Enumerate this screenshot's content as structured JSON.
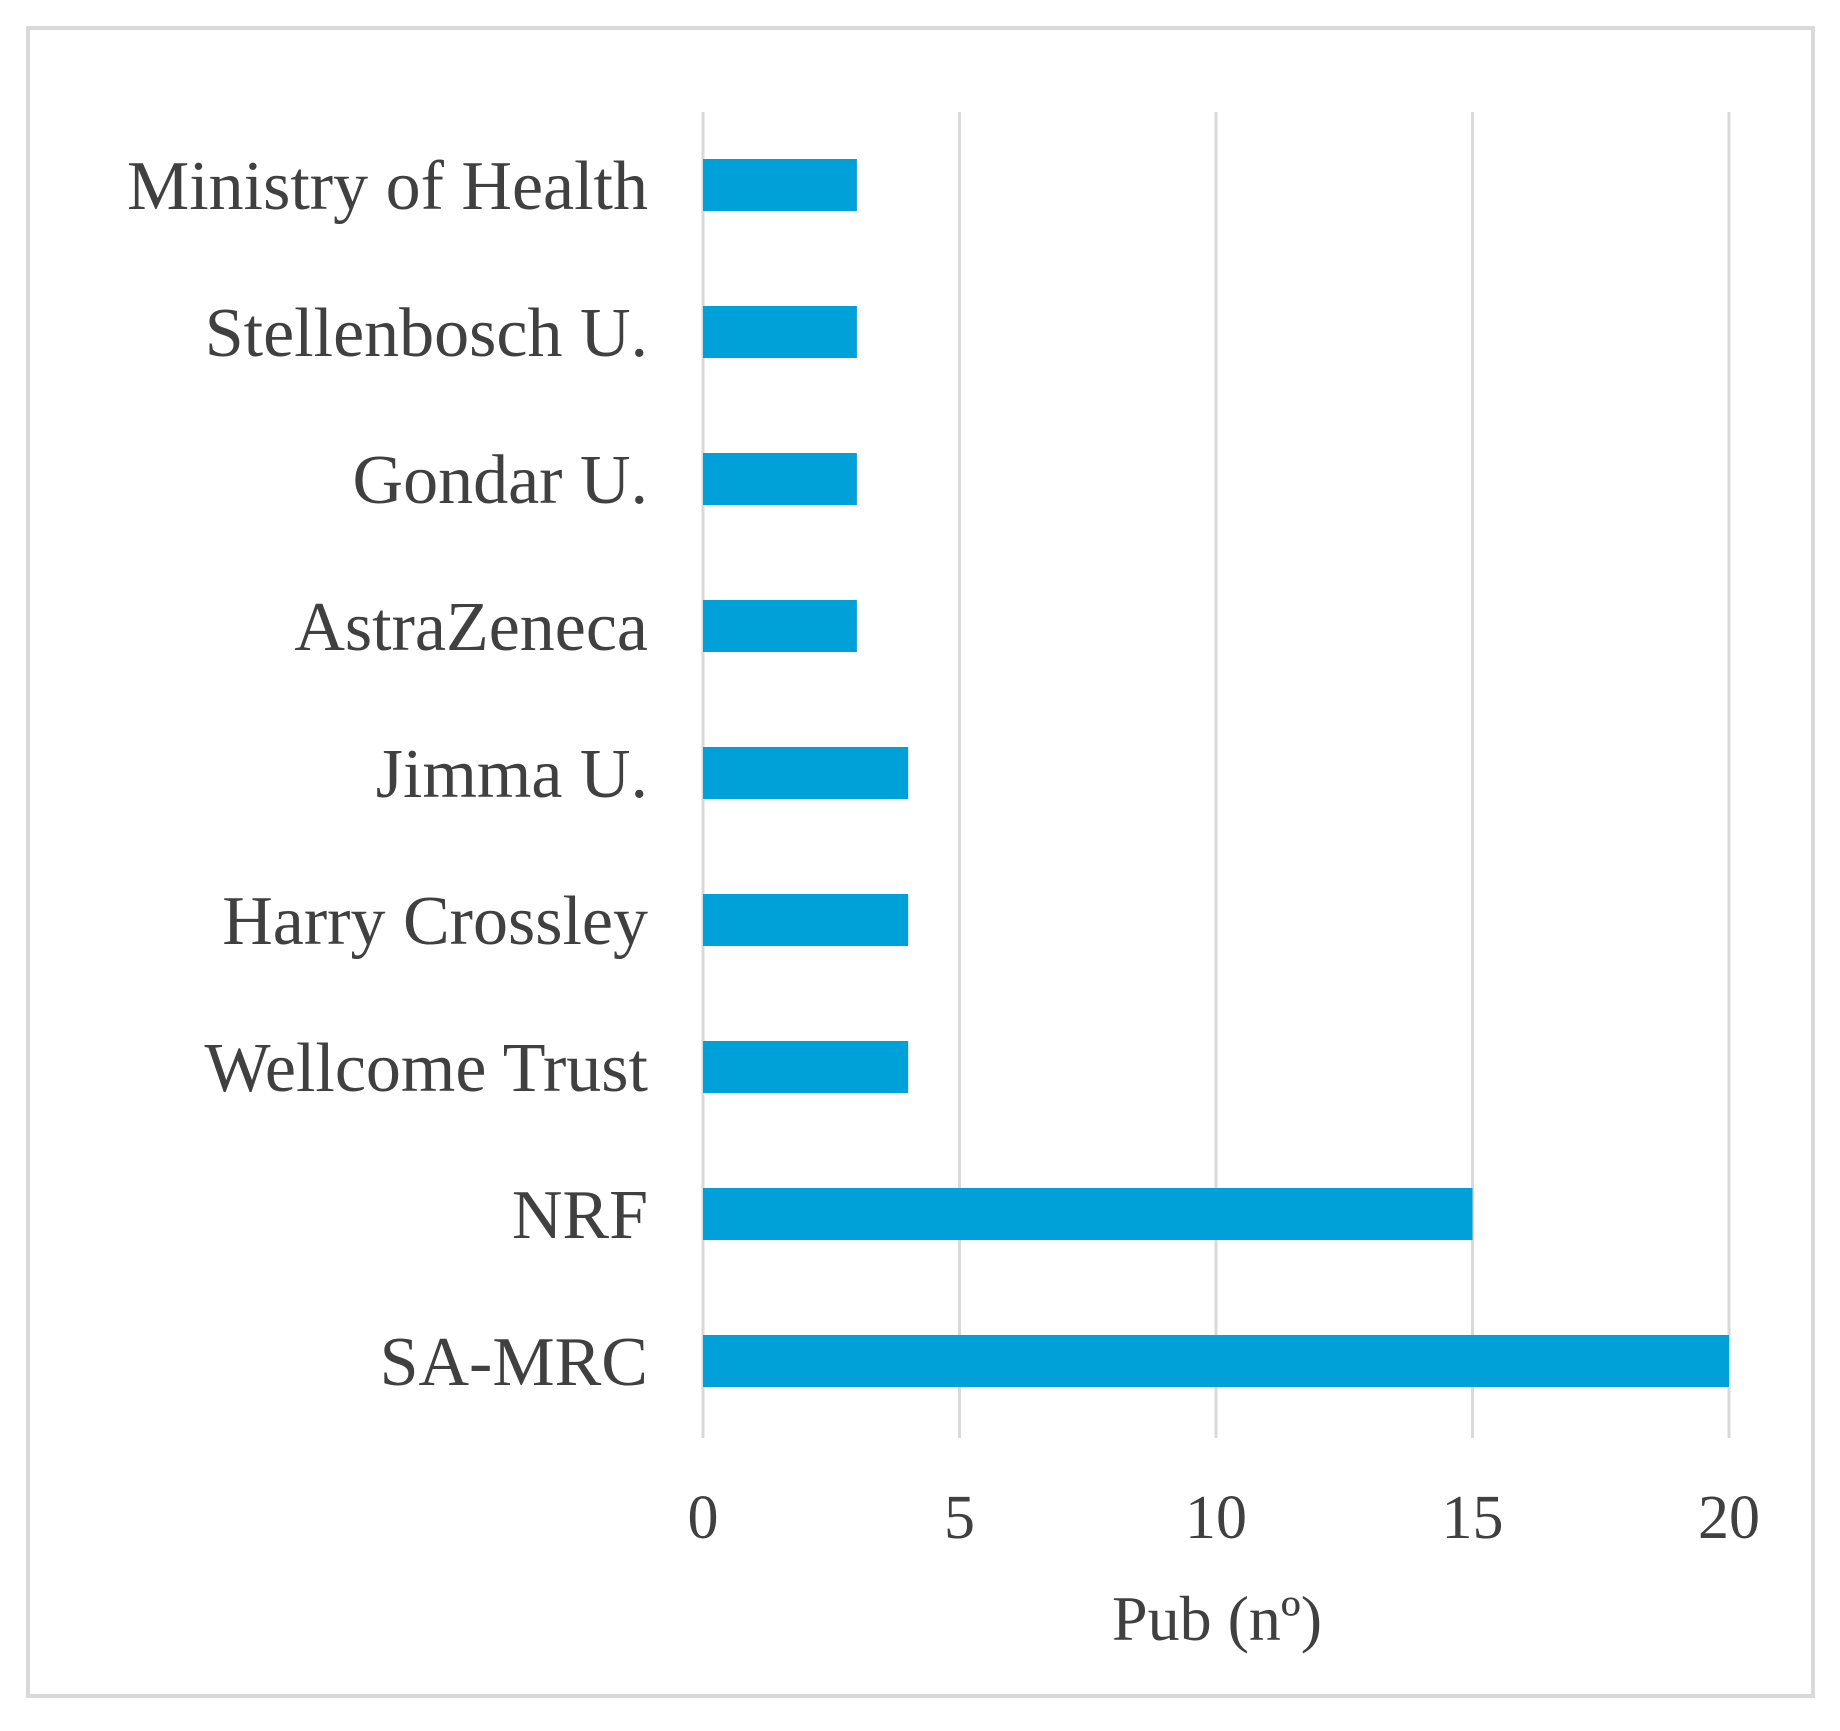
{
  "chart_data": {
    "type": "bar",
    "orientation": "horizontal",
    "categories": [
      "Ministry of Health",
      "Stellenbosch U.",
      "Gondar U.",
      "AstraZeneca",
      "Jimma U.",
      "Harry Crossley",
      "Wellcome Trust",
      "NRF",
      "SA-MRC"
    ],
    "values": [
      3,
      3,
      3,
      3,
      4,
      4,
      4,
      15,
      20
    ],
    "xlabel": "Pub (nº)",
    "ylabel": "",
    "title": "",
    "xlim": [
      0,
      20
    ],
    "x_ticks": [
      "0",
      "5",
      "10",
      "15",
      "20"
    ],
    "grid": "vertical",
    "legend": "none",
    "bar_color": "#00a0d8",
    "grid_color": "#d9d9d9",
    "frame_color": "#d9d9d9",
    "text_color": "#404040"
  }
}
